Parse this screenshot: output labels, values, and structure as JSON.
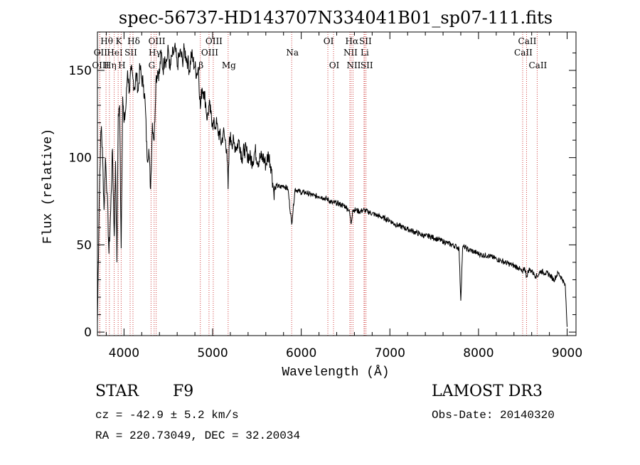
{
  "chart_data": {
    "type": "line",
    "title": "spec-56737-HD143707N334041B01_sp07-111.fits",
    "xlabel": "Wavelength (Å)",
    "ylabel": "Flux (relative)",
    "xlim": [
      3700,
      9100
    ],
    "ylim": [
      -2,
      172
    ],
    "xticks": [
      4000,
      5000,
      6000,
      7000,
      8000,
      9000
    ],
    "yticks": [
      0,
      50,
      100,
      150
    ],
    "grid": false,
    "series": [
      {
        "name": "spectrum",
        "x": [
          3700,
          3720,
          3735,
          3745,
          3760,
          3775,
          3790,
          3810,
          3830,
          3850,
          3870,
          3889,
          3905,
          3920,
          3935,
          3950,
          3968,
          3985,
          4000,
          4020,
          4040,
          4060,
          4080,
          4101,
          4120,
          4140,
          4160,
          4180,
          4200,
          4220,
          4240,
          4260,
          4280,
          4300,
          4320,
          4340,
          4360,
          4380,
          4400,
          4420,
          4440,
          4460,
          4480,
          4500,
          4520,
          4540,
          4560,
          4580,
          4600,
          4620,
          4640,
          4660,
          4680,
          4700,
          4720,
          4740,
          4760,
          4780,
          4800,
          4820,
          4840,
          4861,
          4880,
          4900,
          4920,
          4940,
          4960,
          4980,
          5000,
          5020,
          5040,
          5060,
          5080,
          5100,
          5120,
          5140,
          5160,
          5175,
          5190,
          5210,
          5240,
          5270,
          5300,
          5330,
          5360,
          5390,
          5420,
          5450,
          5480,
          5510,
          5540,
          5570,
          5600,
          5630,
          5660,
          5690,
          5720,
          5760,
          5800,
          5850,
          5892,
          5930,
          5970,
          6000,
          6050,
          6100,
          6150,
          6200,
          6250,
          6300,
          6350,
          6400,
          6450,
          6500,
          6540,
          6563,
          6580,
          6620,
          6660,
          6700,
          6750,
          6800,
          6850,
          6900,
          6950,
          7000,
          7050,
          7100,
          7150,
          7200,
          7250,
          7300,
          7350,
          7400,
          7450,
          7500,
          7550,
          7600,
          7650,
          7700,
          7750,
          7780,
          7800,
          7820,
          7840,
          7860,
          7900,
          7950,
          8000,
          8050,
          8100,
          8150,
          8200,
          8250,
          8300,
          8350,
          8400,
          8450,
          8498,
          8520,
          8542,
          8570,
          8600,
          8630,
          8662,
          8700,
          8750,
          8800,
          8850,
          8900,
          8950,
          8980,
          9000
        ],
        "values": [
          5,
          75,
          108,
          118,
          98,
          70,
          100,
          80,
          45,
          70,
          105,
          55,
          98,
          40,
          125,
          130,
          48,
          135,
          120,
          128,
          150,
          138,
          150,
          145,
          140,
          148,
          138,
          152,
          145,
          142,
          130,
          100,
          105,
          82,
          120,
          110,
          145,
          150,
          148,
          160,
          150,
          158,
          155,
          162,
          150,
          158,
          160,
          162,
          152,
          158,
          160,
          155,
          162,
          158,
          155,
          150,
          160,
          155,
          152,
          148,
          152,
          128,
          140,
          138,
          132,
          122,
          130,
          125,
          120,
          118,
          120,
          115,
          113,
          108,
          115,
          110,
          105,
          82,
          112,
          110,
          108,
          106,
          110,
          100,
          105,
          102,
          100,
          98,
          104,
          98,
          100,
          100,
          96,
          102,
          95,
          80,
          84,
          83,
          84,
          82,
          62,
          82,
          81,
          80,
          80,
          79,
          78,
          78,
          77,
          76,
          74,
          74,
          73,
          72,
          70,
          62,
          70,
          70,
          69,
          70,
          69,
          68,
          67,
          66,
          65,
          64,
          62,
          61,
          60,
          59,
          58,
          57,
          56,
          55,
          55,
          54,
          53,
          52,
          51,
          50,
          49,
          48,
          18,
          48,
          49,
          48,
          47,
          46,
          45,
          44,
          44,
          43,
          42,
          41,
          40,
          39,
          38,
          37,
          34,
          37,
          32,
          36,
          35,
          33,
          32,
          35,
          34,
          33,
          30,
          34,
          30,
          26,
          3
        ]
      }
    ],
    "lines": [
      {
        "label": "Hθ",
        "x": 3797,
        "row": 1
      },
      {
        "label": "OII",
        "x": 3727,
        "row": 2
      },
      {
        "label": "OIII",
        "x": 3727,
        "row": 3
      },
      {
        "label": "Hη",
        "x": 3835,
        "row": 3
      },
      {
        "label": "HeI",
        "x": 3889,
        "row": 2
      },
      {
        "label": "K",
        "x": 3934,
        "row": 1
      },
      {
        "label": "H",
        "x": 3968,
        "row": 3
      },
      {
        "label": "SII",
        "x": 4069,
        "row": 2
      },
      {
        "label": "Hδ",
        "x": 4101,
        "row": 1
      },
      {
        "label": "OIII",
        "x": 4363,
        "row": 1
      },
      {
        "label": "Hγ",
        "x": 4340,
        "row": 2
      },
      {
        "label": "G",
        "x": 4305,
        "row": 3
      },
      {
        "label": "OIII",
        "x": 5007,
        "row": 1
      },
      {
        "label": "OIII",
        "x": 4959,
        "row": 2
      },
      {
        "label": "β",
        "x": 4861,
        "row": 3
      },
      {
        "label": "Mg",
        "x": 5175,
        "row": 3
      },
      {
        "label": "Na",
        "x": 5892,
        "row": 2
      },
      {
        "label": "OI",
        "x": 6300,
        "row": 1
      },
      {
        "label": "OI",
        "x": 6364,
        "row": 3
      },
      {
        "label": "Hα",
        "x": 6563,
        "row": 1
      },
      {
        "label": "SII",
        "x": 6716,
        "row": 1
      },
      {
        "label": "NII",
        "x": 6548,
        "row": 2
      },
      {
        "label": "Li",
        "x": 6708,
        "row": 2
      },
      {
        "label": "NII",
        "x": 6584,
        "row": 3
      },
      {
        "label": "SII",
        "x": 6731,
        "row": 3
      },
      {
        "label": "CaII",
        "x": 8542,
        "row": 1
      },
      {
        "label": "CaII",
        "x": 8498,
        "row": 2
      },
      {
        "label": "CaII",
        "x": 8662,
        "row": 3
      }
    ]
  },
  "info": {
    "object_class": "STAR",
    "subclass": "F9",
    "survey": "LAMOST DR3",
    "cz": "cz = -42.9 ± 5.2 km/s",
    "obs_date": "Obs-Date: 20140320",
    "coords": "RA = 220.73049, DEC =  32.20034"
  }
}
